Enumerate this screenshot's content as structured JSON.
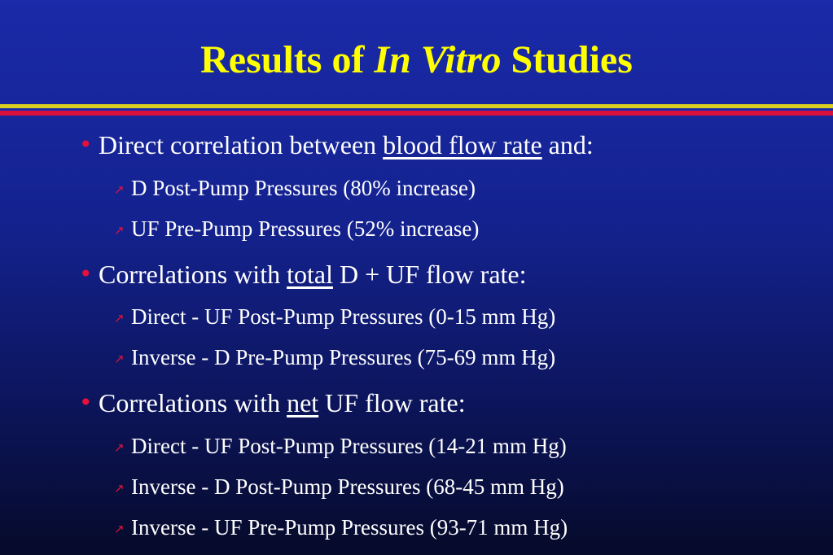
{
  "title": {
    "part1": "Results of ",
    "italic": "In Vitro",
    "part2": " Studies"
  },
  "bullets": [
    {
      "pre": "Direct correlation between ",
      "underlined": "blood flow rate",
      "post": " and:",
      "subs": [
        "D Post-Pump Pressures (80% increase)",
        "UF Pre-Pump Pressures (52% increase)"
      ]
    },
    {
      "pre": "Correlations with ",
      "underlined": "total",
      "post": " D + UF flow rate:",
      "subs": [
        "Direct - UF Post-Pump Pressures (0-15 mm Hg)",
        "Inverse - D Pre-Pump Pressures (75-69 mm Hg)"
      ]
    },
    {
      "pre": "Correlations with ",
      "underlined": "net",
      "post": " UF flow rate:",
      "subs": [
        "Direct - UF Post-Pump Pressures (14-21 mm Hg)",
        "Inverse - D Post-Pump Pressures (68-45 mm Hg)",
        "Inverse - UF Pre-Pump Pressures (93-71 mm Hg)"
      ]
    }
  ],
  "icons": {
    "bullet": "bullet-dot-icon",
    "sub_bullet": "arrow-up-right-icon"
  },
  "colors": {
    "title": "#ffff00",
    "text": "#ffffff",
    "bullet": "#e8103a",
    "rule_yellow": "#d8cf1e",
    "rule_red": "#d8103a"
  }
}
